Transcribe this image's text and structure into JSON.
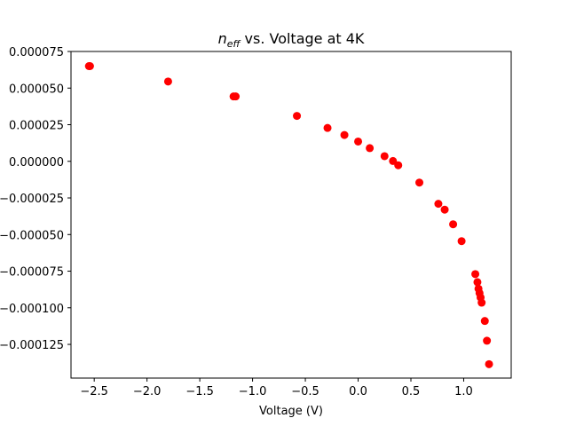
{
  "chart_data": {
    "type": "scatter",
    "title_main": "n",
    "title_sub": "eff",
    "title_rest": " vs. Voltage at 4K",
    "xlabel": "Voltage (V)",
    "ylabel": "",
    "xlim": [
      -2.72,
      1.45
    ],
    "ylim": [
      -0.000148,
      7.5e-05
    ],
    "xticks": [
      -2.5,
      -2.0,
      -1.5,
      -1.0,
      -0.5,
      0.0,
      0.5,
      1.0
    ],
    "xtick_labels": [
      "−2.5",
      "−2.0",
      "−1.5",
      "−1.0",
      "−0.5",
      "0.0",
      "0.5",
      "1.0"
    ],
    "yticks": [
      7.5e-05,
      5e-05,
      2.5e-05,
      0.0,
      -2.5e-05,
      -5e-05,
      -7.5e-05,
      -0.0001,
      -0.000125
    ],
    "ytick_labels": [
      "0.000075",
      "0.000050",
      "0.000025",
      "0.000000",
      "−0.000025",
      "−0.000050",
      "−0.000075",
      "−0.000100",
      "−0.000125"
    ],
    "grid": false,
    "marker_color": "#ff0000",
    "series": [
      {
        "x": [
          -2.55,
          -2.54,
          -1.8,
          -1.18,
          -1.16,
          -0.58,
          -0.29,
          -0.13,
          0.0,
          0.11,
          0.25,
          0.33,
          0.38,
          0.58,
          0.76,
          0.82,
          0.9,
          0.98,
          1.11,
          1.13,
          1.14,
          1.15,
          1.16,
          1.17,
          1.2,
          1.22,
          1.24
        ],
        "y": [
          6.5e-05,
          6.5e-05,
          5.45e-05,
          4.43e-05,
          4.43e-05,
          3.1e-05,
          2.28e-05,
          1.8e-05,
          1.35e-05,
          9e-06,
          3.5e-06,
          2e-07,
          -2.7e-06,
          -1.45e-05,
          -2.9e-05,
          -3.3e-05,
          -4.3e-05,
          -5.45e-05,
          -7.7e-05,
          -8.25e-05,
          -8.7e-05,
          -9e-05,
          -9.3e-05,
          -9.65e-05,
          -0.000109,
          -0.0001225,
          -0.0001385
        ]
      }
    ]
  }
}
